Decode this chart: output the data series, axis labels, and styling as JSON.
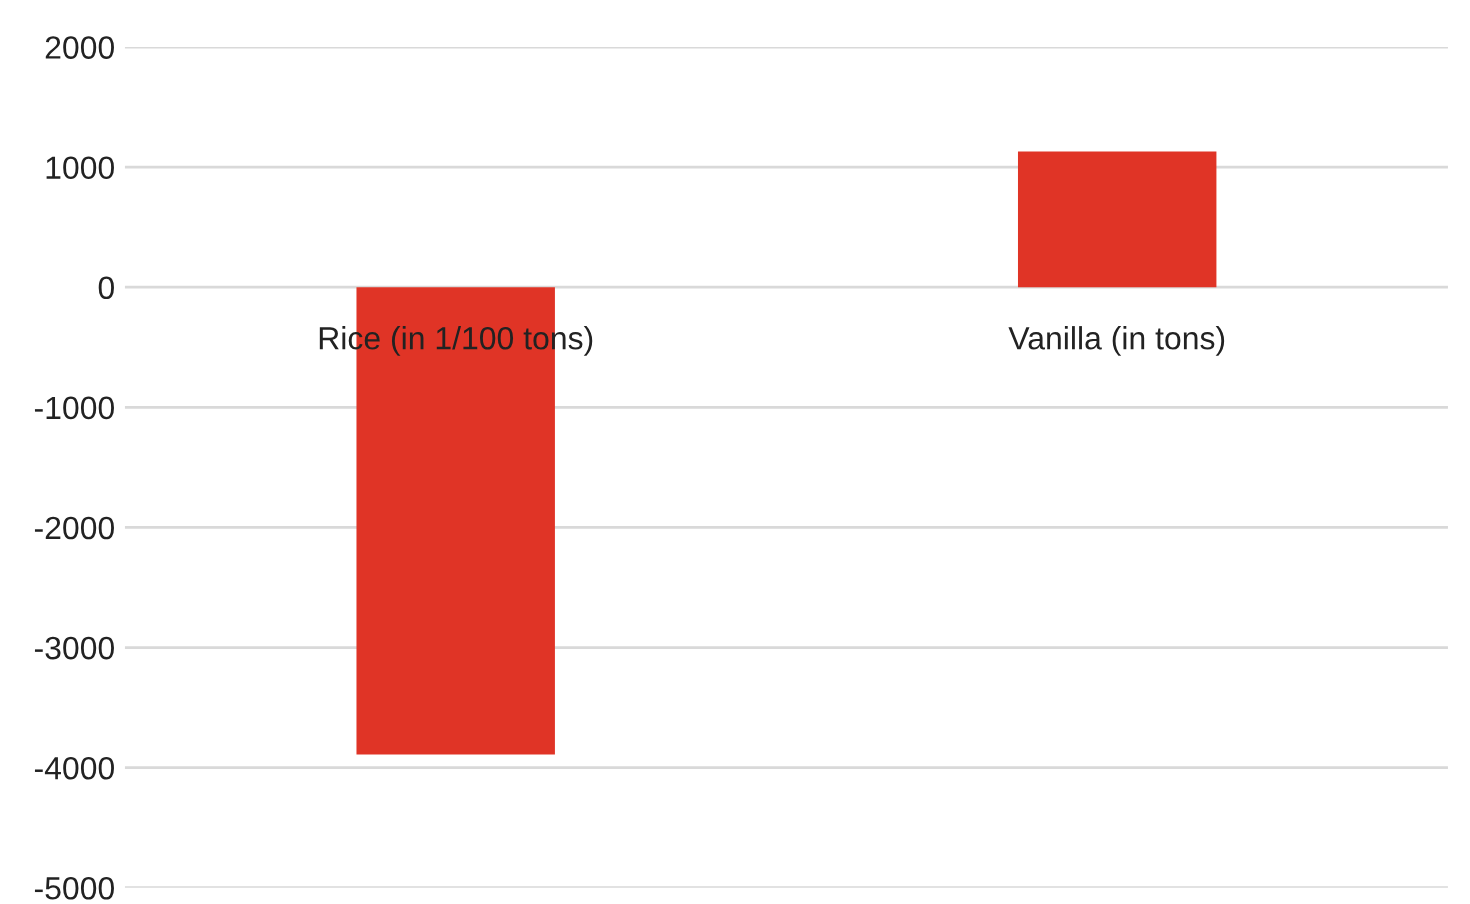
{
  "chart_data": {
    "type": "bar",
    "categories": [
      "Rice (in 1/100 tons)",
      "Vanilla (in tons)"
    ],
    "values": [
      -3890,
      1130
    ],
    "color": "#e03426",
    "ylim": [
      -5000,
      2000
    ],
    "yticks": [
      -5000,
      -4000,
      -3000,
      -2000,
      -1000,
      0,
      1000,
      2000
    ],
    "grid": "y"
  }
}
